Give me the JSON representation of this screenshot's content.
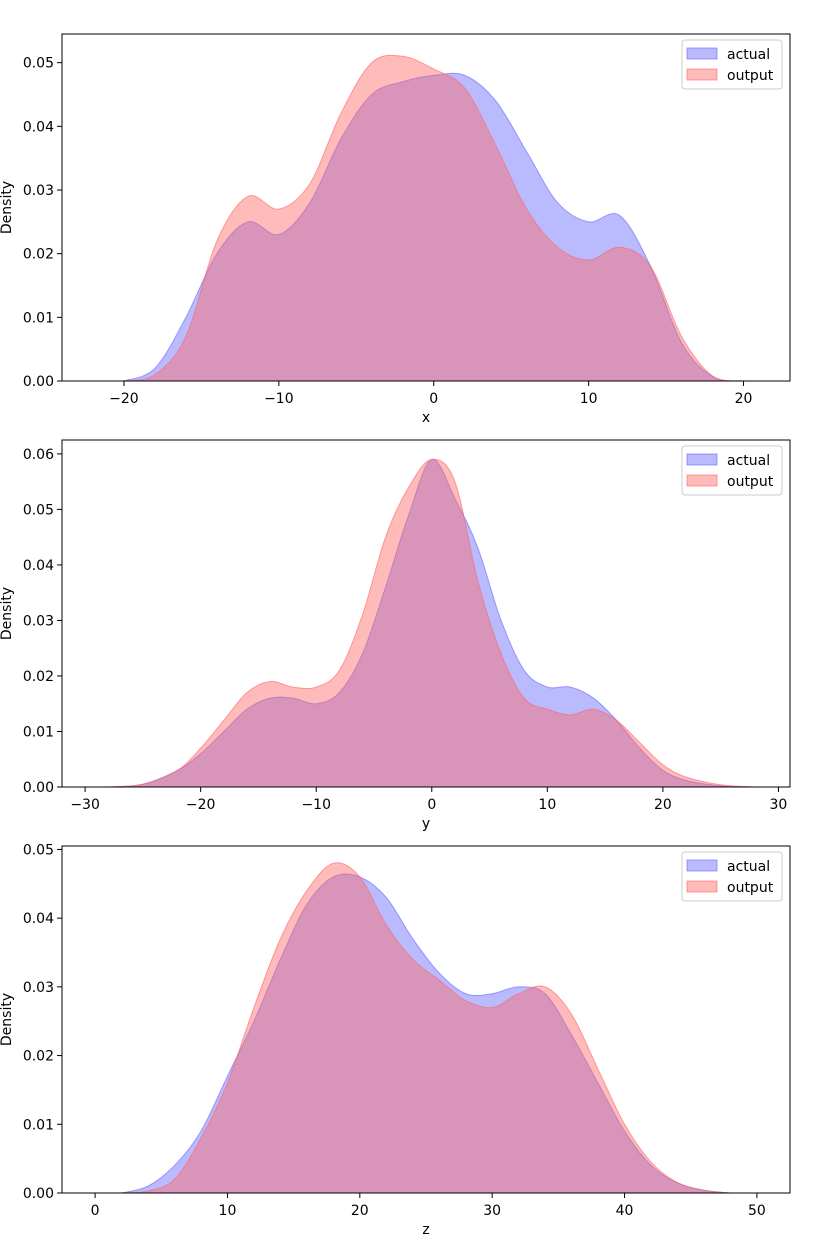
{
  "colors": {
    "actual": "#6666ff",
    "output": "#ff6666",
    "axes": "#000000",
    "background": "#ffffff"
  },
  "chart_data": [
    {
      "type": "area",
      "xlabel": "x",
      "ylabel": "Density",
      "xlim": [
        -24,
        23
      ],
      "ylim": [
        0,
        0.0545
      ],
      "xticks": [
        -20,
        -10,
        0,
        10,
        20
      ],
      "xtick_labels": [
        "−20",
        "−10",
        "0",
        "10",
        "20"
      ],
      "yticks": [
        0,
        0.01,
        0.02,
        0.03,
        0.04,
        0.05
      ],
      "ytick_labels": [
        "0.00",
        "0.01",
        "0.02",
        "0.03",
        "0.04",
        "0.05"
      ],
      "legend": {
        "placement": "top-right",
        "entries": [
          "actual",
          "output"
        ]
      },
      "grid": false,
      "series": [
        {
          "name": "actual",
          "x": [
            -20,
            -18,
            -16,
            -14,
            -12,
            -10,
            -8,
            -6,
            -4,
            -2,
            0,
            2,
            4,
            6,
            8,
            10,
            12,
            14,
            16,
            18,
            20
          ],
          "values": [
            0,
            0.002,
            0.01,
            0.02,
            0.025,
            0.023,
            0.028,
            0.038,
            0.045,
            0.047,
            0.048,
            0.048,
            0.044,
            0.036,
            0.028,
            0.025,
            0.026,
            0.018,
            0.006,
            0.0007,
            0
          ]
        },
        {
          "name": "output",
          "x": [
            -20,
            -18,
            -16,
            -14,
            -12,
            -10,
            -8,
            -6,
            -4,
            -2,
            0,
            2,
            4,
            6,
            8,
            10,
            12,
            14,
            16,
            18,
            20
          ],
          "values": [
            0,
            0.001,
            0.007,
            0.022,
            0.029,
            0.027,
            0.031,
            0.042,
            0.05,
            0.051,
            0.049,
            0.046,
            0.037,
            0.027,
            0.021,
            0.019,
            0.021,
            0.018,
            0.007,
            0.0008,
            0
          ]
        }
      ]
    },
    {
      "type": "area",
      "xlabel": "y",
      "ylabel": "Density",
      "xlim": [
        -32,
        31
      ],
      "ylim": [
        0,
        0.0625
      ],
      "xticks": [
        -30,
        -20,
        -10,
        0,
        10,
        20,
        30
      ],
      "xtick_labels": [
        "−30",
        "−20",
        "−10",
        "0",
        "10",
        "20",
        "30"
      ],
      "yticks": [
        0,
        0.01,
        0.02,
        0.03,
        0.04,
        0.05,
        0.06
      ],
      "ytick_labels": [
        "0.00",
        "0.01",
        "0.02",
        "0.03",
        "0.04",
        "0.05",
        "0.06"
      ],
      "legend": {
        "placement": "top-right",
        "entries": [
          "actual",
          "output"
        ]
      },
      "grid": false,
      "series": [
        {
          "name": "actual",
          "x": [
            -28,
            -25,
            -22,
            -20,
            -18,
            -16,
            -14,
            -12,
            -10,
            -8,
            -6,
            -4,
            -2,
            0,
            2,
            4,
            6,
            8,
            10,
            12,
            14,
            16,
            18,
            20,
            22,
            25,
            28
          ],
          "values": [
            0,
            0.0005,
            0.003,
            0.006,
            0.01,
            0.014,
            0.016,
            0.016,
            0.015,
            0.017,
            0.024,
            0.036,
            0.049,
            0.059,
            0.052,
            0.043,
            0.03,
            0.021,
            0.018,
            0.018,
            0.016,
            0.012,
            0.007,
            0.003,
            0.0012,
            0.0002,
            0
          ]
        },
        {
          "name": "output",
          "x": [
            -28,
            -25,
            -22,
            -20,
            -18,
            -16,
            -14,
            -12,
            -10,
            -8,
            -6,
            -4,
            -2,
            0,
            2,
            4,
            6,
            8,
            10,
            12,
            14,
            16,
            18,
            20,
            22,
            25,
            28
          ],
          "values": [
            0,
            0.0005,
            0.003,
            0.007,
            0.012,
            0.017,
            0.019,
            0.018,
            0.018,
            0.021,
            0.031,
            0.045,
            0.054,
            0.059,
            0.055,
            0.037,
            0.024,
            0.016,
            0.014,
            0.013,
            0.014,
            0.012,
            0.008,
            0.004,
            0.0018,
            0.0004,
            0
          ]
        }
      ]
    },
    {
      "type": "area",
      "xlabel": "z",
      "ylabel": "Density",
      "xlim": [
        -2.5,
        52.5
      ],
      "ylim": [
        0,
        0.0505
      ],
      "xticks": [
        0,
        10,
        20,
        30,
        40,
        50
      ],
      "xtick_labels": [
        "0",
        "10",
        "20",
        "30",
        "40",
        "50"
      ],
      "yticks": [
        0,
        0.01,
        0.02,
        0.03,
        0.04,
        0.05
      ],
      "ytick_labels": [
        "0.00",
        "0.01",
        "0.02",
        "0.03",
        "0.04",
        "0.05"
      ],
      "legend": {
        "placement": "top-right",
        "entries": [
          "actual",
          "output"
        ]
      },
      "grid": false,
      "series": [
        {
          "name": "actual",
          "x": [
            2,
            4,
            6,
            8,
            10,
            12,
            14,
            16,
            18,
            20,
            22,
            24,
            26,
            28,
            30,
            32,
            34,
            36,
            38,
            40,
            42,
            44,
            46,
            48
          ],
          "values": [
            0,
            0.001,
            0.004,
            0.009,
            0.017,
            0.025,
            0.034,
            0.042,
            0.046,
            0.046,
            0.043,
            0.037,
            0.032,
            0.029,
            0.029,
            0.03,
            0.029,
            0.023,
            0.016,
            0.009,
            0.004,
            0.0015,
            0.0004,
            0
          ]
        },
        {
          "name": "output",
          "x": [
            2,
            4,
            6,
            8,
            10,
            12,
            14,
            16,
            18,
            20,
            22,
            24,
            26,
            28,
            30,
            32,
            34,
            36,
            38,
            40,
            42,
            44,
            46,
            48
          ],
          "values": [
            0,
            0.0003,
            0.002,
            0.008,
            0.016,
            0.027,
            0.037,
            0.044,
            0.048,
            0.046,
            0.039,
            0.034,
            0.031,
            0.028,
            0.027,
            0.029,
            0.03,
            0.026,
            0.018,
            0.01,
            0.0045,
            0.0015,
            0.0004,
            0
          ]
        }
      ]
    }
  ]
}
